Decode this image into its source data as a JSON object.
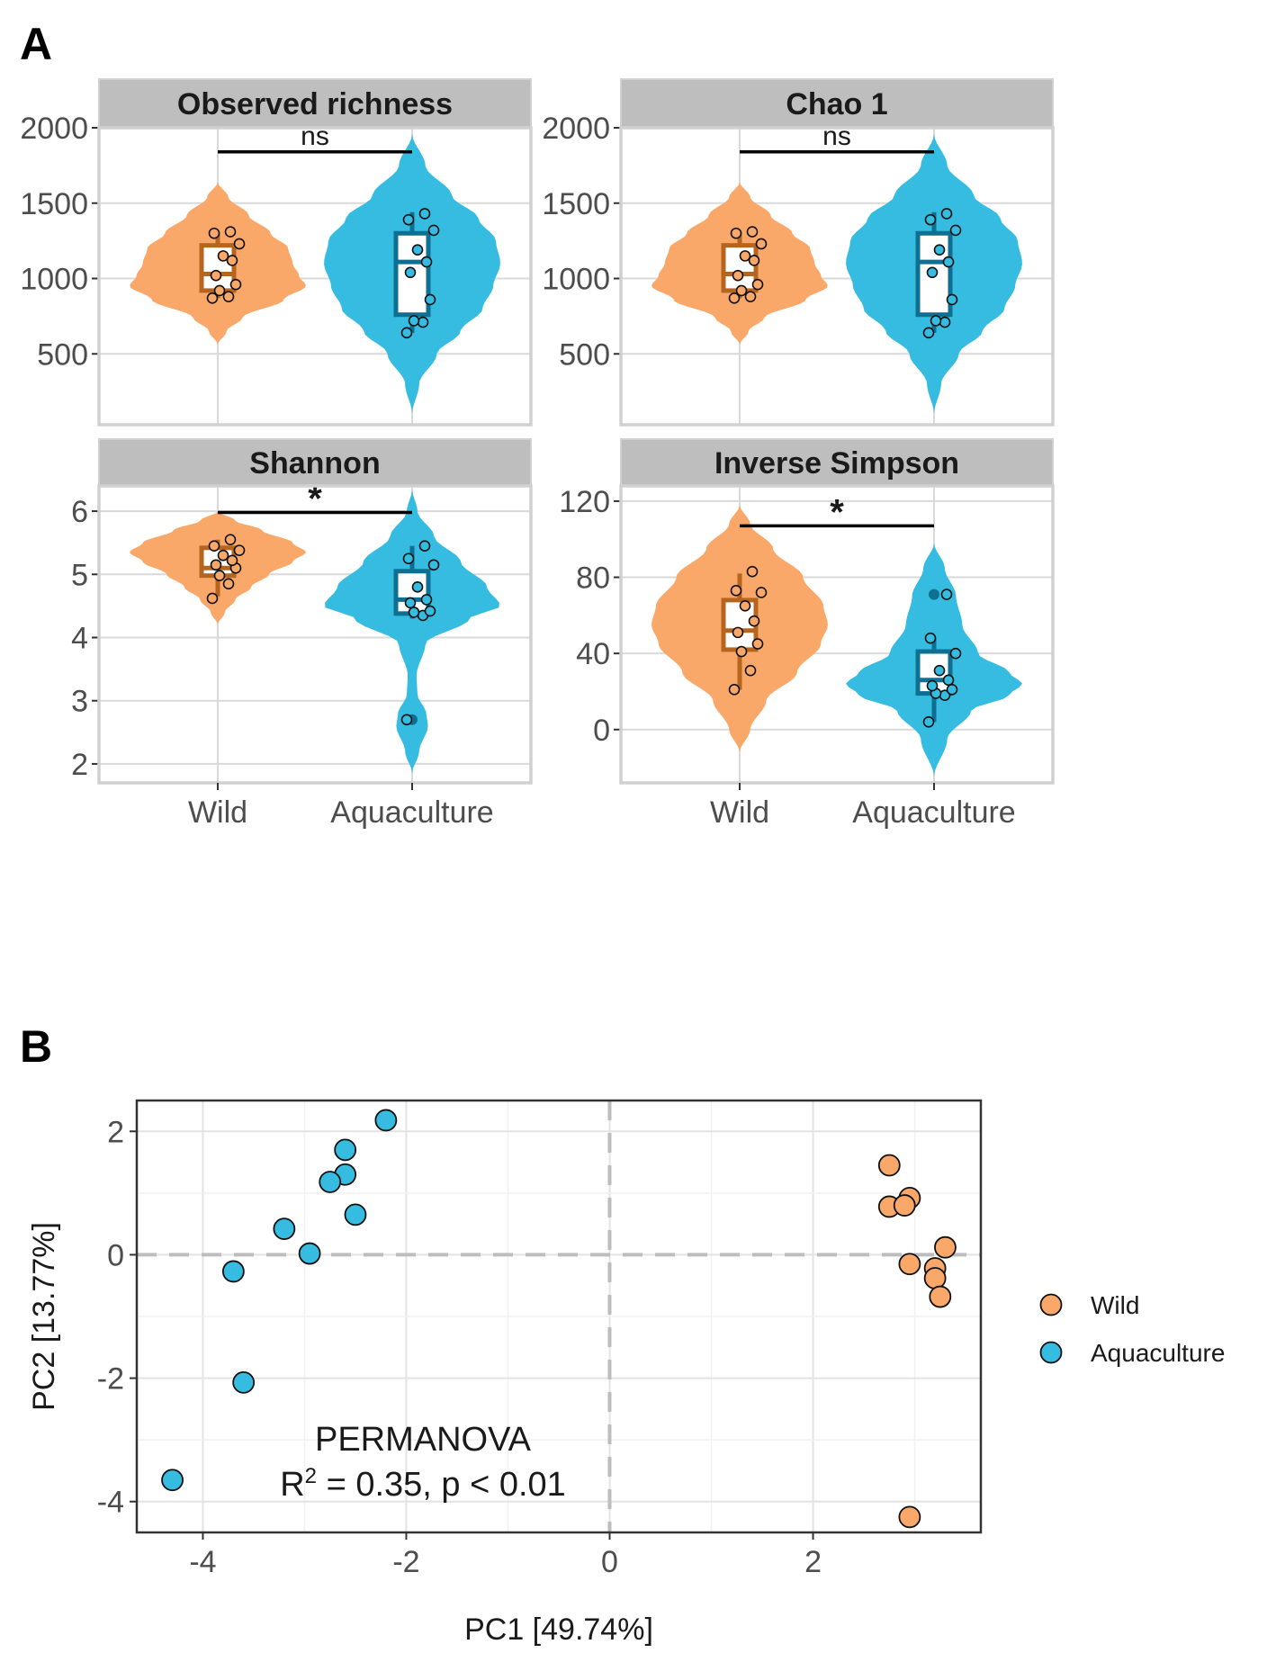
{
  "figure": {
    "panel_a_label": "A",
    "panel_b_label": "B"
  },
  "colors": {
    "wild_fill": "#F9A869",
    "wild_box": "#B5651D",
    "aqua_fill": "#36BCE0",
    "aqua_box": "#0E6F93",
    "grid": "#D9D9D9",
    "strip_bg": "#BEBEBE",
    "panel_border": "#D0D0D0"
  },
  "chart_data": [
    {
      "type": "violin",
      "title": "Observed richness",
      "categories": [
        "Wild",
        "Aquaculture"
      ],
      "ylim": [
        30,
        2000
      ],
      "yticks": [
        500,
        1000,
        1500,
        2000
      ],
      "significance": "ns",
      "bracket_y": 1840,
      "groups": [
        {
          "name": "Wild",
          "min": 560,
          "max": 1640,
          "density": [
            [
              560,
              0.0
            ],
            [
              650,
              0.1
            ],
            [
              740,
              0.28
            ],
            [
              860,
              0.75
            ],
            [
              950,
              1.0
            ],
            [
              1020,
              0.92
            ],
            [
              1100,
              0.85
            ],
            [
              1200,
              0.8
            ],
            [
              1300,
              0.6
            ],
            [
              1420,
              0.35
            ],
            [
              1540,
              0.12
            ],
            [
              1640,
              0.0
            ]
          ],
          "box": {
            "q1": 920,
            "median": 1030,
            "q3": 1220,
            "whisker_low": 870,
            "whisker_high": 1310
          },
          "points": [
            870,
            880,
            920,
            960,
            1020,
            1120,
            1150,
            1230,
            1300,
            1310
          ]
        },
        {
          "name": "Aquaculture",
          "min": 100,
          "max": 1960,
          "density": [
            [
              100,
              0.0
            ],
            [
              300,
              0.08
            ],
            [
              500,
              0.28
            ],
            [
              650,
              0.55
            ],
            [
              800,
              0.8
            ],
            [
              950,
              0.92
            ],
            [
              1100,
              1.0
            ],
            [
              1250,
              0.95
            ],
            [
              1400,
              0.75
            ],
            [
              1550,
              0.45
            ],
            [
              1750,
              0.15
            ],
            [
              1960,
              0.0
            ]
          ],
          "box": {
            "q1": 760,
            "median": 1110,
            "q3": 1300,
            "whisker_low": 640,
            "whisker_high": 1440
          },
          "points": [
            640,
            710,
            720,
            860,
            1040,
            1110,
            1190,
            1320,
            1390,
            1430
          ]
        }
      ]
    },
    {
      "type": "violin",
      "title": "Chao 1",
      "categories": [
        "Wild",
        "Aquaculture"
      ],
      "ylim": [
        30,
        2000
      ],
      "yticks": [
        500,
        1000,
        1500,
        2000
      ],
      "significance": "ns",
      "bracket_y": 1840,
      "groups": [
        {
          "name": "Wild",
          "min": 560,
          "max": 1640,
          "density": [
            [
              560,
              0.0
            ],
            [
              650,
              0.1
            ],
            [
              740,
              0.28
            ],
            [
              860,
              0.75
            ],
            [
              950,
              1.0
            ],
            [
              1020,
              0.92
            ],
            [
              1100,
              0.85
            ],
            [
              1200,
              0.8
            ],
            [
              1300,
              0.6
            ],
            [
              1420,
              0.35
            ],
            [
              1540,
              0.12
            ],
            [
              1640,
              0.0
            ]
          ],
          "box": {
            "q1": 920,
            "median": 1030,
            "q3": 1220,
            "whisker_low": 870,
            "whisker_high": 1310
          },
          "points": [
            870,
            880,
            920,
            960,
            1020,
            1120,
            1150,
            1230,
            1300,
            1310
          ]
        },
        {
          "name": "Aquaculture",
          "min": 100,
          "max": 1960,
          "density": [
            [
              100,
              0.0
            ],
            [
              300,
              0.08
            ],
            [
              500,
              0.28
            ],
            [
              650,
              0.55
            ],
            [
              800,
              0.8
            ],
            [
              950,
              0.92
            ],
            [
              1100,
              1.0
            ],
            [
              1250,
              0.95
            ],
            [
              1400,
              0.75
            ],
            [
              1550,
              0.45
            ],
            [
              1750,
              0.15
            ],
            [
              1960,
              0.0
            ]
          ],
          "box": {
            "q1": 760,
            "median": 1110,
            "q3": 1300,
            "whisker_low": 640,
            "whisker_high": 1440
          },
          "points": [
            640,
            710,
            720,
            860,
            1040,
            1110,
            1190,
            1320,
            1390,
            1430
          ]
        }
      ]
    },
    {
      "type": "violin",
      "title": "Shannon",
      "categories": [
        "Wild",
        "Aquaculture"
      ],
      "ylim": [
        1.7,
        6.4
      ],
      "yticks": [
        2,
        3,
        4,
        5,
        6
      ],
      "significance": "*",
      "bracket_y": 5.98,
      "groups": [
        {
          "name": "Wild",
          "min": 4.2,
          "max": 6.0,
          "density": [
            [
              4.2,
              0.0
            ],
            [
              4.4,
              0.08
            ],
            [
              4.6,
              0.2
            ],
            [
              4.8,
              0.38
            ],
            [
              5.0,
              0.58
            ],
            [
              5.2,
              0.85
            ],
            [
              5.35,
              1.0
            ],
            [
              5.5,
              0.85
            ],
            [
              5.7,
              0.5
            ],
            [
              5.85,
              0.2
            ],
            [
              6.0,
              0.0
            ]
          ],
          "box": {
            "q1": 4.98,
            "median": 5.1,
            "q3": 5.42,
            "whisker_low": 4.65,
            "whisker_high": 5.55
          },
          "points": [
            4.62,
            4.85,
            4.98,
            5.1,
            5.15,
            5.22,
            5.3,
            5.38,
            5.45,
            5.55
          ]
        },
        {
          "name": "Aquaculture",
          "min": 1.85,
          "max": 6.35,
          "density": [
            [
              1.85,
              0.0
            ],
            [
              2.2,
              0.08
            ],
            [
              2.6,
              0.18
            ],
            [
              2.8,
              0.16
            ],
            [
              3.1,
              0.06
            ],
            [
              3.4,
              0.05
            ],
            [
              3.9,
              0.15
            ],
            [
              4.3,
              0.65
            ],
            [
              4.5,
              1.0
            ],
            [
              4.8,
              0.85
            ],
            [
              5.2,
              0.55
            ],
            [
              5.6,
              0.25
            ],
            [
              6.0,
              0.06
            ],
            [
              6.35,
              0.0
            ]
          ],
          "box": {
            "q1": 4.38,
            "median": 4.6,
            "q3": 5.05,
            "whisker_low": 4.3,
            "whisker_high": 5.45
          },
          "outliers": [
            2.7
          ],
          "points": [
            2.7,
            4.35,
            4.4,
            4.42,
            4.55,
            4.6,
            4.8,
            5.15,
            5.25,
            5.45
          ]
        }
      ]
    },
    {
      "type": "violin",
      "title": "Inverse Simpson",
      "categories": [
        "Wild",
        "Aquaculture"
      ],
      "ylim": [
        -28,
        128
      ],
      "yticks": [
        0,
        40,
        80,
        120
      ],
      "significance": "*",
      "bracket_y": 107,
      "groups": [
        {
          "name": "Wild",
          "min": -12,
          "max": 118,
          "density": [
            [
              -12,
              0.0
            ],
            [
              0,
              0.12
            ],
            [
              15,
              0.3
            ],
            [
              30,
              0.65
            ],
            [
              45,
              0.92
            ],
            [
              55,
              1.0
            ],
            [
              65,
              0.95
            ],
            [
              80,
              0.72
            ],
            [
              95,
              0.38
            ],
            [
              108,
              0.12
            ],
            [
              118,
              0.0
            ]
          ],
          "box": {
            "q1": 42,
            "median": 52,
            "q3": 68,
            "whisker_low": 21,
            "whisker_high": 82
          },
          "points": [
            21,
            31,
            41,
            45,
            51,
            57,
            65,
            72,
            73,
            83
          ]
        },
        {
          "name": "Aquaculture",
          "min": -25,
          "max": 98,
          "density": [
            [
              -25,
              0.0
            ],
            [
              -5,
              0.15
            ],
            [
              10,
              0.42
            ],
            [
              18,
              0.85
            ],
            [
              24,
              1.0
            ],
            [
              30,
              0.85
            ],
            [
              40,
              0.5
            ],
            [
              55,
              0.32
            ],
            [
              70,
              0.25
            ],
            [
              85,
              0.12
            ],
            [
              98,
              0.0
            ]
          ],
          "box": {
            "q1": 19,
            "median": 26,
            "q3": 41,
            "whisker_low": 4,
            "whisker_high": 48
          },
          "outliers": [
            71
          ],
          "points": [
            4,
            18,
            19,
            21,
            23,
            26,
            31,
            40,
            48,
            71
          ]
        }
      ]
    },
    {
      "type": "scatter",
      "xlabel": "PC1 [49.74%]",
      "ylabel": "PC2 [13.77%]",
      "xlim": [
        -4.65,
        3.65
      ],
      "ylim": [
        -4.5,
        2.5
      ],
      "xticks": [
        -4,
        -2,
        0,
        2
      ],
      "yticks": [
        -4,
        -2,
        0,
        2
      ],
      "annotation_line1": "PERMANOVA",
      "annotation_line2_prefix": "R",
      "annotation_line2_sup": "2",
      "annotation_line2_suffix": " = 0.35, p < 0.01",
      "legend": [
        "Wild",
        "Aquaculture"
      ],
      "series": [
        {
          "name": "Wild",
          "points": [
            [
              2.75,
              1.45
            ],
            [
              2.75,
              0.78
            ],
            [
              2.95,
              0.92
            ],
            [
              2.9,
              0.8
            ],
            [
              3.3,
              0.12
            ],
            [
              2.95,
              -0.15
            ],
            [
              3.2,
              -0.22
            ],
            [
              3.2,
              -0.38
            ],
            [
              3.25,
              -0.68
            ],
            [
              2.95,
              -4.25
            ]
          ]
        },
        {
          "name": "Aquaculture",
          "points": [
            [
              -2.2,
              2.18
            ],
            [
              -2.6,
              1.7
            ],
            [
              -2.6,
              1.3
            ],
            [
              -2.75,
              1.18
            ],
            [
              -2.5,
              0.65
            ],
            [
              -3.2,
              0.42
            ],
            [
              -2.95,
              0.02
            ],
            [
              -3.7,
              -0.27
            ],
            [
              -3.6,
              -2.07
            ],
            [
              -4.3,
              -3.65
            ]
          ]
        }
      ]
    }
  ]
}
